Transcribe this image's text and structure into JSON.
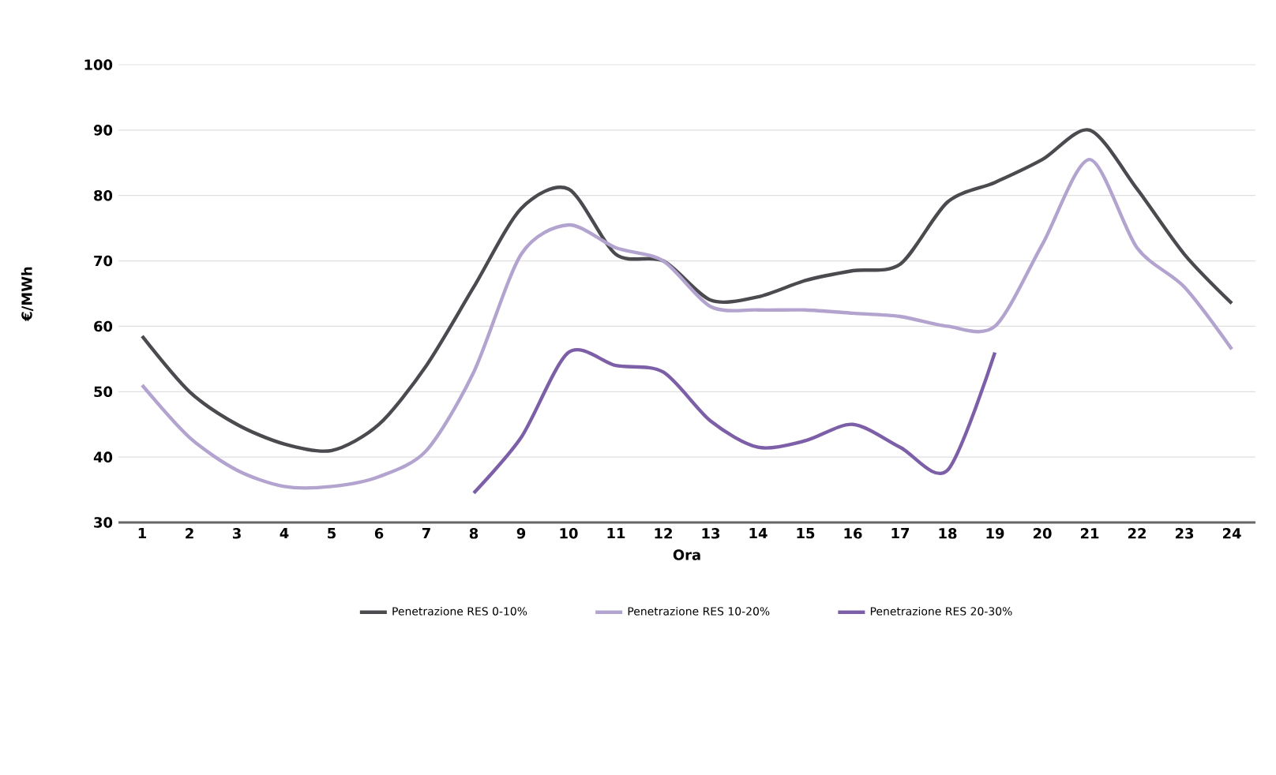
{
  "chart_data": {
    "type": "line",
    "xlabel": "Ora",
    "ylabel": "€/MWh",
    "x": [
      1,
      2,
      3,
      4,
      5,
      6,
      7,
      8,
      9,
      10,
      11,
      12,
      13,
      14,
      15,
      16,
      17,
      18,
      19,
      20,
      21,
      22,
      23,
      24
    ],
    "xlim": [
      0.5,
      24.5
    ],
    "xticks": [
      1,
      2,
      3,
      4,
      5,
      6,
      7,
      8,
      9,
      10,
      11,
      12,
      13,
      14,
      15,
      16,
      17,
      18,
      19,
      20,
      21,
      22,
      23,
      24
    ],
    "ylim": [
      30,
      100
    ],
    "yticks": [
      30,
      40,
      50,
      60,
      70,
      80,
      90,
      100
    ],
    "grid": "y",
    "legend": "bottom",
    "marker": "none",
    "line_style": "solid",
    "series": [
      {
        "name": "Penetrazione RES 0-10%",
        "color": "#4a4a4f",
        "values": [
          58.5,
          50,
          45,
          42,
          41,
          45,
          54,
          66,
          78,
          81,
          71,
          70,
          64,
          64.5,
          67,
          68.5,
          69.5,
          79,
          82,
          85.5,
          90,
          81,
          71,
          63.5
        ]
      },
      {
        "name": "Penetrazione RES 10-20%",
        "color": "#b3a3cf",
        "values": [
          51,
          43,
          38,
          35.5,
          35.5,
          37,
          41,
          53,
          71,
          75.5,
          72,
          70,
          63,
          62.5,
          62.5,
          62,
          61.5,
          60,
          60,
          72.5,
          85.5,
          72,
          66,
          56.5
        ]
      },
      {
        "name": "Penetrazione RES 20-30%",
        "color": "#7d5fa8",
        "values": [
          null,
          null,
          null,
          null,
          null,
          null,
          null,
          34.5,
          43,
          56,
          54,
          53,
          45.5,
          41.5,
          42.5,
          45,
          41.5,
          38,
          56,
          null,
          null,
          null,
          null,
          null
        ]
      }
    ]
  }
}
